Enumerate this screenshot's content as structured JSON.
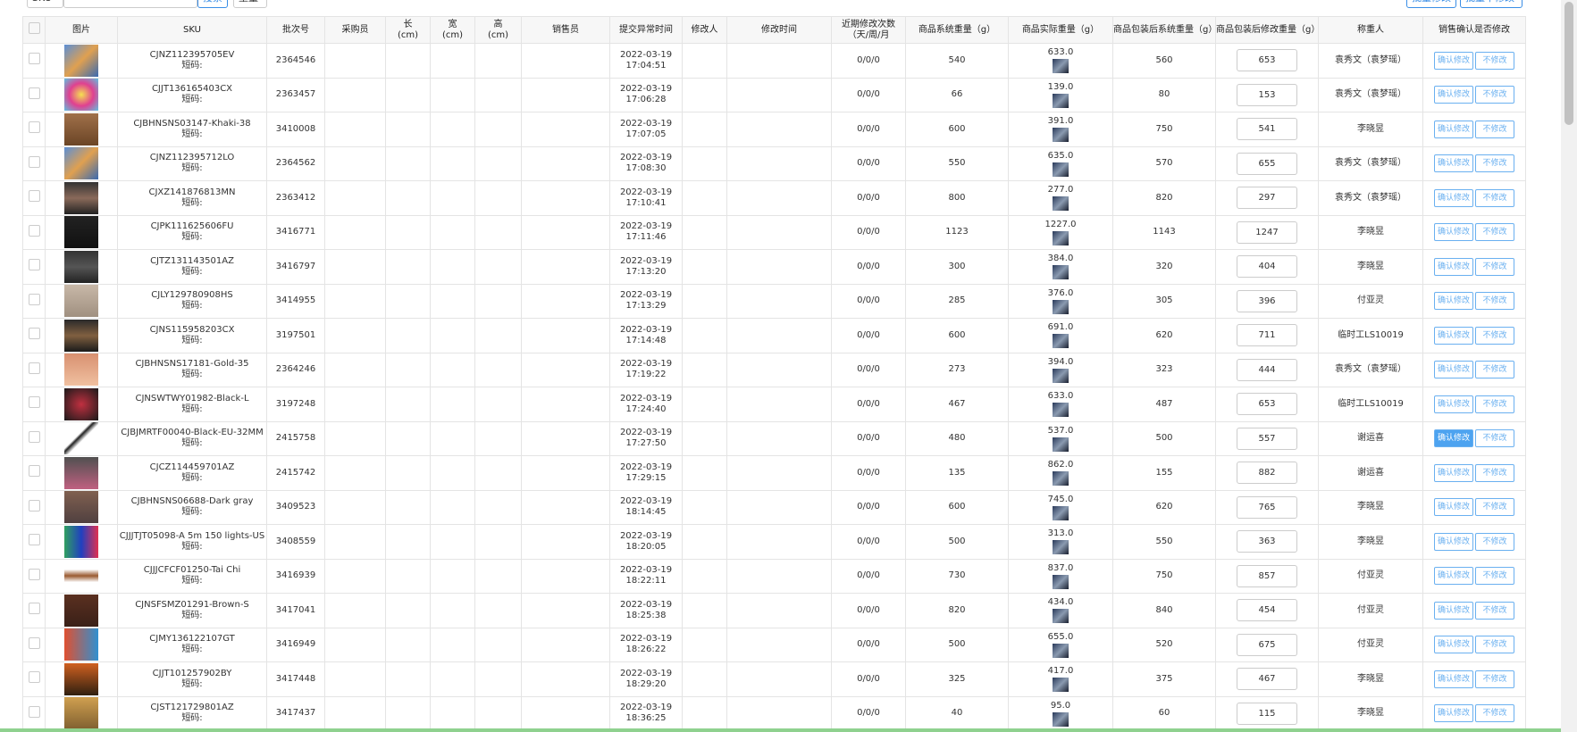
{
  "toolbar": {
    "search_field": "SKU",
    "search_button": "搜索",
    "weight_select": "重量",
    "batch_modify": "批量修改",
    "batch_no_modify": "批量不修改"
  },
  "table": {
    "headers": [
      "图片",
      "SKU",
      "批次号",
      "采购员",
      "长\n(cm)",
      "宽\n(cm)",
      "高\n(cm)",
      "销售员",
      "提交异常时间",
      "修改人",
      "修改时间",
      "近期修改次数（天/周/月",
      "商品系统重量（g）",
      "商品实际重量（g）",
      "商品包装后系统重量（g）",
      "商品包装后修改重量（g）",
      "称重人",
      "销售确认是否修改"
    ],
    "short_code_label": "短码:",
    "confirm_label": "确认修改",
    "reject_label": "不修改",
    "active_confirm_row": 11,
    "rows": [
      {
        "sku": "CJNZ112395705EV",
        "batch": "2364546",
        "date": "2022-03-19",
        "time": "17:04:51",
        "counts": "0/0/0",
        "sys": "540",
        "actual": "633.0",
        "pack": "560",
        "modified": "653",
        "weigher": "袁秀文（袁梦瑶）"
      },
      {
        "sku": "CJJT136165403CX",
        "batch": "2363457",
        "date": "2022-03-19",
        "time": "17:06:28",
        "counts": "0/0/0",
        "sys": "66",
        "actual": "139.0",
        "pack": "80",
        "modified": "153",
        "weigher": "袁秀文（袁梦瑶）"
      },
      {
        "sku": "CJBHNSNS03147-Khaki-38",
        "batch": "3410008",
        "date": "2022-03-19",
        "time": "17:07:05",
        "counts": "0/0/0",
        "sys": "600",
        "actual": "391.0",
        "pack": "750",
        "modified": "541",
        "weigher": "李晓昱"
      },
      {
        "sku": "CJNZ112395712LO",
        "batch": "2364562",
        "date": "2022-03-19",
        "time": "17:08:30",
        "counts": "0/0/0",
        "sys": "550",
        "actual": "635.0",
        "pack": "570",
        "modified": "655",
        "weigher": "袁秀文（袁梦瑶）"
      },
      {
        "sku": "CJXZ141876813MN",
        "batch": "2363412",
        "date": "2022-03-19",
        "time": "17:10:41",
        "counts": "0/0/0",
        "sys": "800",
        "actual": "277.0",
        "pack": "820",
        "modified": "297",
        "weigher": "袁秀文（袁梦瑶）"
      },
      {
        "sku": "CJPK111625606FU",
        "batch": "3416771",
        "date": "2022-03-19",
        "time": "17:11:46",
        "counts": "0/0/0",
        "sys": "1123",
        "actual": "1227.0",
        "pack": "1143",
        "modified": "1247",
        "weigher": "李晓昱"
      },
      {
        "sku": "CJTZ131143501AZ",
        "batch": "3416797",
        "date": "2022-03-19",
        "time": "17:13:20",
        "counts": "0/0/0",
        "sys": "300",
        "actual": "384.0",
        "pack": "320",
        "modified": "404",
        "weigher": "李晓昱"
      },
      {
        "sku": "CJLY129780908HS",
        "batch": "3414955",
        "date": "2022-03-19",
        "time": "17:13:29",
        "counts": "0/0/0",
        "sys": "285",
        "actual": "376.0",
        "pack": "305",
        "modified": "396",
        "weigher": "付亚灵"
      },
      {
        "sku": "CJNS115958203CX",
        "batch": "3197501",
        "date": "2022-03-19",
        "time": "17:14:48",
        "counts": "0/0/0",
        "sys": "600",
        "actual": "691.0",
        "pack": "620",
        "modified": "711",
        "weigher": "临时工LS10019"
      },
      {
        "sku": "CJBHNSNS17181-Gold-35",
        "batch": "2364246",
        "date": "2022-03-19",
        "time": "17:19:22",
        "counts": "0/0/0",
        "sys": "273",
        "actual": "394.0",
        "pack": "323",
        "modified": "444",
        "weigher": "袁秀文（袁梦瑶）"
      },
      {
        "sku": "CJNSWTWY01982-Black-L",
        "batch": "3197248",
        "date": "2022-03-19",
        "time": "17:24:40",
        "counts": "0/0/0",
        "sys": "467",
        "actual": "633.0",
        "pack": "487",
        "modified": "653",
        "weigher": "临时工LS10019"
      },
      {
        "sku": "CJBJMRTF00040-Black-EU-32MM",
        "batch": "2415758",
        "date": "2022-03-19",
        "time": "17:27:50",
        "counts": "0/0/0",
        "sys": "480",
        "actual": "537.0",
        "pack": "500",
        "modified": "557",
        "weigher": "谢运喜"
      },
      {
        "sku": "CJCZ114459701AZ",
        "batch": "2415742",
        "date": "2022-03-19",
        "time": "17:29:15",
        "counts": "0/0/0",
        "sys": "135",
        "actual": "862.0",
        "pack": "155",
        "modified": "882",
        "weigher": "谢运喜"
      },
      {
        "sku": "CJBHNSNS06688-Dark gray",
        "batch": "3409523",
        "date": "2022-03-19",
        "time": "18:14:45",
        "counts": "0/0/0",
        "sys": "600",
        "actual": "745.0",
        "pack": "620",
        "modified": "765",
        "weigher": "李晓昱"
      },
      {
        "sku": "CJJJTJT05098-A 5m 150 lights-US",
        "batch": "3408559",
        "date": "2022-03-19",
        "time": "18:20:05",
        "counts": "0/0/0",
        "sys": "500",
        "actual": "313.0",
        "pack": "550",
        "modified": "363",
        "weigher": "李晓昱"
      },
      {
        "sku": "CJJJCFCF01250-Tai Chi",
        "batch": "3416939",
        "date": "2022-03-19",
        "time": "18:22:11",
        "counts": "0/0/0",
        "sys": "730",
        "actual": "837.0",
        "pack": "750",
        "modified": "857",
        "weigher": "付亚灵"
      },
      {
        "sku": "CJNSFSMZ01291-Brown-S",
        "batch": "3417041",
        "date": "2022-03-19",
        "time": "18:25:38",
        "counts": "0/0/0",
        "sys": "820",
        "actual": "434.0",
        "pack": "840",
        "modified": "454",
        "weigher": "付亚灵"
      },
      {
        "sku": "CJMY136122107GT",
        "batch": "3416949",
        "date": "2022-03-19",
        "time": "18:26:22",
        "counts": "0/0/0",
        "sys": "500",
        "actual": "655.0",
        "pack": "520",
        "modified": "675",
        "weigher": "付亚灵"
      },
      {
        "sku": "CJJT101257902BY",
        "batch": "3417448",
        "date": "2022-03-19",
        "time": "18:29:20",
        "counts": "0/0/0",
        "sys": "325",
        "actual": "417.0",
        "pack": "375",
        "modified": "467",
        "weigher": "李晓昱"
      },
      {
        "sku": "CJST121729801AZ",
        "batch": "3417437",
        "date": "2022-03-19",
        "time": "18:36:25",
        "counts": "0/0/0",
        "sys": "40",
        "actual": "95.0",
        "pack": "60",
        "modified": "115",
        "weigher": "李晓昱"
      }
    ]
  }
}
